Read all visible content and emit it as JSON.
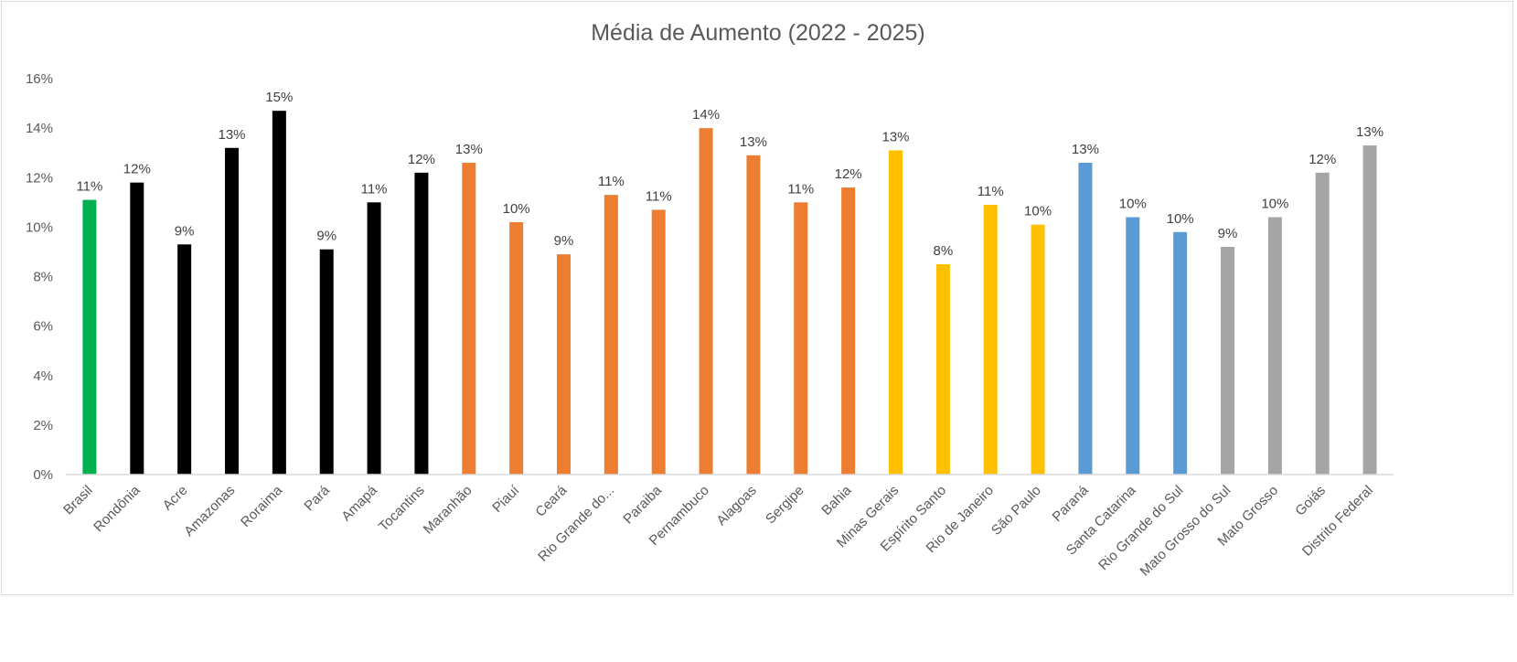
{
  "chart_data": {
    "type": "bar",
    "title": "Média de Aumento (2022 - 2025)",
    "xlabel": "",
    "ylabel": "",
    "ylim": [
      0,
      0.16
    ],
    "y_ticks": [
      "0%",
      "2%",
      "4%",
      "6%",
      "8%",
      "10%",
      "12%",
      "14%",
      "16%"
    ],
    "grid": false,
    "legend": "none",
    "categories": [
      "Brasil",
      "Rondônia",
      "Acre",
      "Amazonas",
      "Roraima",
      "Pará",
      "Amapá",
      "Tocantins",
      "Maranhão",
      "Piauí",
      "Ceará",
      "Rio Grande do...",
      "Paraiba",
      "Pernambuco",
      "Alagoas",
      "Sergipe",
      "Bahia",
      "Minas Gerais",
      "Espírito Santo",
      "Rio de Janeiro",
      "São Paulo",
      "Paraná",
      "Santa Catarina",
      "Rio Grande do Sul",
      "Mato Grosso do Sul",
      "Mato Grosso",
      "Goiás",
      "Distrito Federal"
    ],
    "values": [
      0.111,
      0.118,
      0.093,
      0.132,
      0.147,
      0.091,
      0.11,
      0.122,
      0.126,
      0.102,
      0.089,
      0.113,
      0.107,
      0.14,
      0.129,
      0.11,
      0.116,
      0.131,
      0.085,
      0.109,
      0.101,
      0.126,
      0.104,
      0.098,
      0.092,
      0.104,
      0.122,
      0.133
    ],
    "data_labels": [
      "11%",
      "12%",
      "9%",
      "13%",
      "15%",
      "9%",
      "11%",
      "12%",
      "13%",
      "10%",
      "9%",
      "11%",
      "11%",
      "14%",
      "13%",
      "11%",
      "12%",
      "13%",
      "8%",
      "11%",
      "10%",
      "13%",
      "10%",
      "10%",
      "9%",
      "10%",
      "12%",
      "13%"
    ],
    "colors": [
      "#00b050",
      "#000000",
      "#000000",
      "#000000",
      "#000000",
      "#000000",
      "#000000",
      "#000000",
      "#ed7d31",
      "#ed7d31",
      "#ed7d31",
      "#ed7d31",
      "#ed7d31",
      "#ed7d31",
      "#ed7d31",
      "#ed7d31",
      "#ed7d31",
      "#ffc000",
      "#ffc000",
      "#ffc000",
      "#ffc000",
      "#5b9bd5",
      "#5b9bd5",
      "#5b9bd5",
      "#a5a5a5",
      "#a5a5a5",
      "#a5a5a5",
      "#a5a5a5"
    ]
  }
}
